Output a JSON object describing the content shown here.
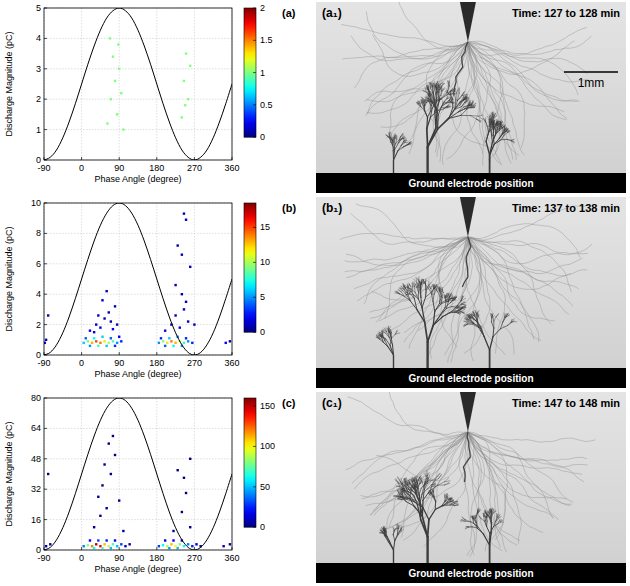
{
  "chart_data": [
    {
      "type": "scatter",
      "title": "(a)",
      "x_label": "Phase Angle (degree)",
      "y_label": "Discharge Magnitude (pC)",
      "xlim": [
        -90,
        360
      ],
      "xticks": [
        -90,
        0,
        90,
        180,
        270,
        360
      ],
      "ylim": [
        0,
        5
      ],
      "yticks": [
        0,
        1,
        2,
        3,
        4,
        5
      ],
      "grid": true,
      "colorbar_lim": [
        0,
        2
      ],
      "colorbar_ticks": [
        0,
        0.5,
        1,
        1.5,
        2
      ],
      "series": [
        {
          "type": "scatter",
          "x": [
            62,
            70,
            75,
            80,
            85,
            90,
            95,
            100,
            68,
            88,
            240,
            245,
            250,
            255,
            260,
            248
          ],
          "values": [
            1.2,
            2.0,
            3.4,
            2.6,
            1.5,
            3.0,
            2.2,
            1.0,
            4.0,
            3.8,
            1.4,
            2.6,
            3.5,
            2.0,
            3.1,
            1.8
          ],
          "counts": [
            1,
            1,
            1,
            1,
            1,
            1,
            1,
            1,
            1,
            1,
            1,
            1,
            1,
            1,
            1,
            1
          ]
        },
        {
          "type": "line",
          "color": "#000000",
          "x": [
            -90,
            -75,
            -60,
            -45,
            -30,
            -15,
            0,
            15,
            30,
            45,
            60,
            75,
            90,
            105,
            120,
            135,
            150,
            165,
            180,
            195,
            210,
            225,
            240,
            255,
            270,
            285,
            300,
            315,
            330,
            345,
            360
          ],
          "values": [
            0,
            0.09,
            0.33,
            0.73,
            1.25,
            1.85,
            2.5,
            3.15,
            3.75,
            4.27,
            4.67,
            4.91,
            5,
            4.91,
            4.67,
            4.27,
            3.75,
            3.15,
            2.5,
            1.85,
            1.25,
            0.73,
            0.33,
            0.09,
            0,
            0.09,
            0.33,
            0.73,
            1.25,
            1.85,
            2.5
          ]
        }
      ]
    },
    {
      "type": "scatter",
      "title": "(b)",
      "x_label": "Phase Angle (degree)",
      "y_label": "Discharge Magnitude (pC)",
      "xlim": [
        -90,
        360
      ],
      "xticks": [
        -90,
        0,
        90,
        180,
        270,
        360
      ],
      "ylim": [
        0,
        10
      ],
      "yticks": [
        0,
        2,
        4,
        6,
        8,
        10
      ],
      "grid": true,
      "colorbar_lim": [
        0,
        18.5
      ],
      "colorbar_ticks": [
        0,
        5,
        10,
        15
      ],
      "series": [
        {
          "type": "scatter",
          "x": [
            5,
            15,
            25,
            35,
            45,
            55,
            65,
            75,
            85,
            95,
            10,
            30,
            50,
            70,
            90,
            20,
            40,
            60,
            80,
            20,
            35,
            45,
            55,
            65,
            75,
            80,
            50,
            60,
            40,
            70,
            30,
            85,
            185,
            195,
            205,
            215,
            225,
            235,
            245,
            255,
            265,
            190,
            210,
            230,
            250,
            200,
            220,
            240,
            200,
            215,
            225,
            235,
            245,
            250,
            240,
            255,
            230,
            245,
            250,
            240,
            260,
            225,
            -88,
            -85,
            345,
            355,
            -80,
            270
          ],
          "values": [
            0.8,
            0.9,
            0.8,
            0.9,
            0.8,
            0.9,
            0.8,
            0.9,
            0.8,
            0.9,
            1.1,
            1.1,
            1.2,
            1.1,
            1.2,
            0.6,
            0.6,
            0.6,
            0.6,
            1.6,
            2.0,
            1.8,
            2.4,
            2.8,
            1.7,
            3.2,
            3.6,
            4.2,
            2.6,
            2.2,
            1.5,
            2.0,
            0.8,
            0.9,
            0.8,
            0.9,
            0.8,
            0.9,
            0.8,
            0.9,
            0.8,
            1.1,
            1.1,
            1.2,
            1.1,
            0.6,
            0.6,
            0.6,
            1.6,
            2.0,
            2.6,
            1.8,
            3.0,
            3.5,
            4.0,
            2.2,
            7.2,
            9.3,
            8.9,
            6.6,
            5.8,
            4.6,
            0.8,
            1.0,
            0.8,
            0.9,
            2.6,
            2.0
          ],
          "counts": [
            6,
            9,
            13,
            15,
            14,
            12,
            10,
            8,
            5,
            3,
            4,
            7,
            6,
            4,
            2,
            5,
            8,
            6,
            3,
            2,
            1,
            2,
            1,
            1,
            2,
            1,
            1,
            1,
            1,
            1,
            2,
            1,
            5,
            9,
            12,
            14,
            13,
            11,
            8,
            5,
            3,
            3,
            6,
            5,
            3,
            4,
            7,
            5,
            2,
            1,
            1,
            2,
            1,
            1,
            1,
            1,
            1,
            1,
            1,
            1,
            1,
            1,
            2,
            1,
            2,
            1,
            1,
            1
          ]
        },
        {
          "type": "line",
          "color": "#000000",
          "x": [
            -90,
            -75,
            -60,
            -45,
            -30,
            -15,
            0,
            15,
            30,
            45,
            60,
            75,
            90,
            105,
            120,
            135,
            150,
            165,
            180,
            195,
            210,
            225,
            240,
            255,
            270,
            285,
            300,
            315,
            330,
            345,
            360
          ],
          "values": [
            0,
            0.17,
            0.67,
            1.46,
            2.5,
            3.71,
            5,
            6.29,
            7.5,
            8.54,
            9.33,
            9.83,
            10,
            9.83,
            9.33,
            8.54,
            7.5,
            6.29,
            5,
            3.71,
            2.5,
            1.46,
            0.67,
            0.17,
            0,
            0.17,
            0.67,
            1.46,
            2.5,
            3.71,
            5
          ]
        }
      ]
    },
    {
      "type": "scatter",
      "title": "(c)",
      "x_label": "Phase Angle (degree)",
      "y_label": "Discharge Magnitude (pC)",
      "xlim": [
        -90,
        360
      ],
      "xticks": [
        -90,
        0,
        90,
        180,
        270,
        360
      ],
      "ylim": [
        0,
        80
      ],
      "yticks": [
        0,
        16,
        32,
        48,
        64,
        80
      ],
      "grid": true,
      "colorbar_lim": [
        0,
        160
      ],
      "colorbar_ticks": [
        0,
        50,
        100,
        150
      ],
      "series": [
        {
          "type": "scatter",
          "x": [
            5,
            15,
            25,
            35,
            45,
            55,
            65,
            75,
            85,
            95,
            105,
            115,
            20,
            40,
            60,
            80,
            30,
            50,
            70,
            185,
            195,
            205,
            215,
            225,
            235,
            245,
            255,
            265,
            275,
            285,
            200,
            220,
            240,
            210,
            230,
            -85,
            -75,
            340,
            355,
            40,
            50,
            60,
            70,
            55,
            65,
            75,
            80,
            45,
            90,
            230,
            245,
            260,
            250,
            240,
            -80,
            30,
            100,
            220,
            260
          ],
          "values": [
            2,
            2.5,
            2,
            3,
            2,
            3,
            2,
            3,
            2,
            3,
            2,
            3,
            5,
            5,
            5,
            5,
            1,
            1,
            1,
            2,
            2.5,
            2,
            3,
            2,
            3,
            2,
            3,
            2,
            3,
            2,
            5,
            5,
            5,
            1,
            1,
            2,
            3,
            2,
            3,
            28,
            34,
            22,
            40,
            45,
            56,
            60,
            50,
            18,
            26,
            42,
            38,
            48,
            30,
            20,
            40,
            12,
            10,
            10,
            12
          ],
          "counts": [
            40,
            80,
            120,
            150,
            140,
            110,
            90,
            70,
            50,
            30,
            15,
            5,
            20,
            30,
            25,
            15,
            60,
            70,
            50,
            30,
            60,
            90,
            110,
            100,
            80,
            60,
            40,
            25,
            12,
            5,
            15,
            20,
            15,
            45,
            50,
            10,
            5,
            10,
            6,
            1,
            1,
            1,
            1,
            1,
            1,
            1,
            1,
            1,
            1,
            1,
            1,
            1,
            1,
            1,
            1,
            2,
            2,
            2,
            2
          ]
        },
        {
          "type": "line",
          "color": "#000000",
          "x": [
            -90,
            -75,
            -60,
            -45,
            -30,
            -15,
            0,
            15,
            30,
            45,
            60,
            75,
            90,
            105,
            120,
            135,
            150,
            165,
            180,
            195,
            210,
            225,
            240,
            255,
            270,
            285,
            300,
            315,
            330,
            345,
            360
          ],
          "values": [
            0,
            1.37,
            5.36,
            11.72,
            20,
            29.65,
            40,
            50.35,
            60,
            68.28,
            74.64,
            78.63,
            80,
            78.63,
            74.64,
            68.28,
            60,
            50.35,
            40,
            29.65,
            20,
            11.72,
            5.36,
            1.37,
            0,
            1.37,
            5.36,
            11.72,
            20,
            29.65,
            40
          ]
        }
      ]
    }
  ],
  "images": [
    {
      "label": "(a₁)",
      "time": "Time: 127 to 128 min",
      "scale_bar": "1mm",
      "ground": "Ground electrode position"
    },
    {
      "label": "(b₁)",
      "time": "Time: 137 to 138 min",
      "ground": "Ground electrode position"
    },
    {
      "label": "(c₁)",
      "time": "Time: 147 to 148 min",
      "ground": "Ground electrode position"
    }
  ]
}
